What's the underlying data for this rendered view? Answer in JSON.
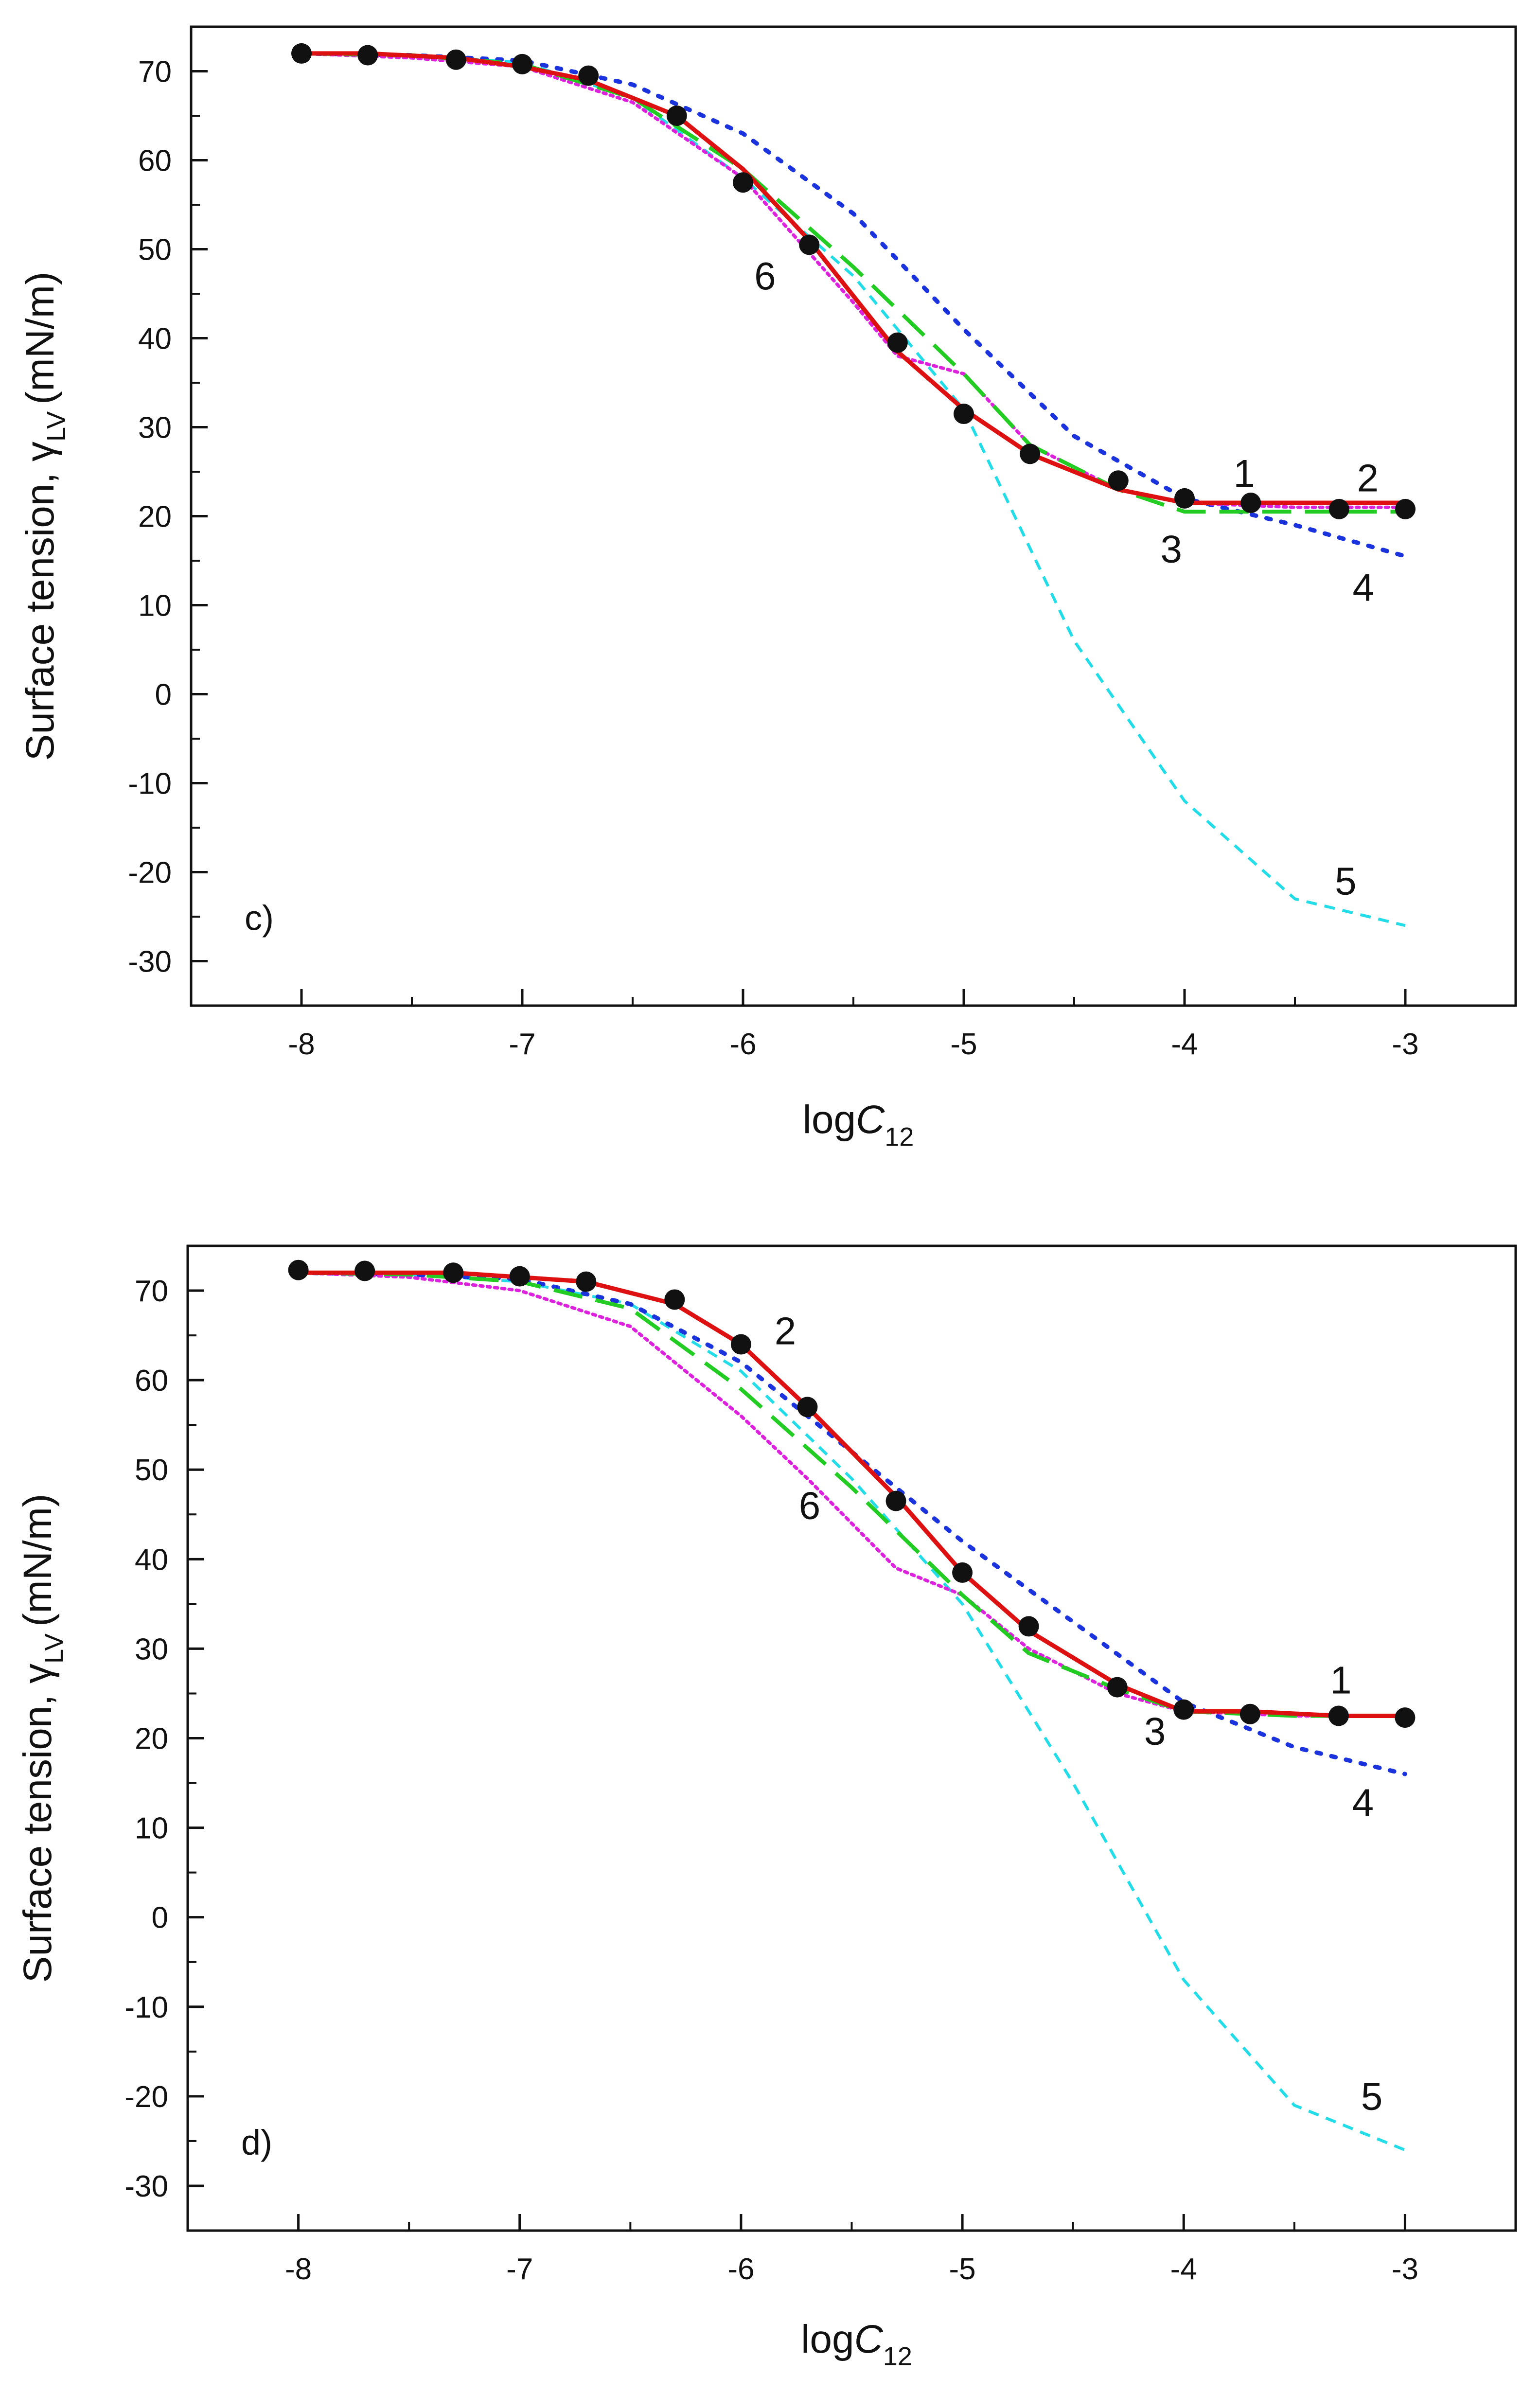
{
  "chart_data": [
    {
      "type": "line",
      "panel_label": "c)",
      "xlabel_main": "log",
      "xlabel_var": "C",
      "xlabel_sub": "12",
      "ylabel_main": "Surface tension, γ",
      "ylabel_sub": "LV",
      "ylabel_unit": "(mN/m)",
      "xlim": [
        -8.5,
        -2.5
      ],
      "ylim": [
        -35,
        75
      ],
      "x_ticks": [
        -8,
        -7,
        -6,
        -5,
        -4,
        -3
      ],
      "y_ticks": [
        70,
        60,
        50,
        40,
        30,
        20,
        10,
        0,
        -10,
        -20,
        -30
      ],
      "series": [
        {
          "name": "5",
          "color": "#22dde8",
          "style": "short-dash",
          "x": [
            -8,
            -7.5,
            -7,
            -6.5,
            -6,
            -5.5,
            -5,
            -4.5,
            -4,
            -3.5,
            -3
          ],
          "y": [
            72,
            71.8,
            71,
            67,
            58,
            47,
            32,
            6,
            -12,
            -23,
            -26
          ]
        },
        {
          "name": "4",
          "color": "#1a33dd",
          "style": "dot",
          "x": [
            -8,
            -7.5,
            -7,
            -6.5,
            -6,
            -5.5,
            -5,
            -4.5,
            -4,
            -3.5,
            -3
          ],
          "y": [
            72,
            71.8,
            71.2,
            68.5,
            63,
            54,
            41,
            29,
            22,
            19,
            15.5
          ]
        },
        {
          "name": "6",
          "color": "#dd22dd",
          "style": "fine-dot",
          "x": [
            -8,
            -7.5,
            -7,
            -6.5,
            -6,
            -5.5,
            -5.3,
            -5,
            -4.7,
            -4.3,
            -4,
            -3.5,
            -3
          ],
          "y": [
            72,
            71.5,
            70.5,
            66.5,
            58,
            44,
            38,
            36,
            28,
            23,
            21.5,
            21,
            21
          ]
        },
        {
          "name": "3",
          "color": "#22cc22",
          "style": "long-dash",
          "x": [
            -8,
            -7.5,
            -7,
            -6.5,
            -6,
            -5.5,
            -5,
            -4.7,
            -4.3,
            -4,
            -3.5,
            -3
          ],
          "y": [
            72,
            71.8,
            70.8,
            67,
            59,
            48,
            36,
            28,
            23,
            20.5,
            20.5,
            20.5
          ]
        },
        {
          "name": "2",
          "color": "#dd1111",
          "style": "solid",
          "x": [
            -8,
            -7.7,
            -7.3,
            -7,
            -6.7,
            -6.3,
            -6,
            -5.7,
            -5.3,
            -5,
            -4.7,
            -4.3,
            -4,
            -3.7,
            -3.3,
            -3
          ],
          "y": [
            72,
            72,
            71.5,
            70.5,
            69,
            65,
            59,
            51,
            38.5,
            32,
            27,
            23,
            21.5,
            21.5,
            21.5,
            21.5
          ]
        },
        {
          "name": "1",
          "color": "#111111",
          "style": "markers",
          "x": [
            -8,
            -7.7,
            -7.3,
            -7,
            -6.7,
            -6.3,
            -6,
            -5.7,
            -5.3,
            -5,
            -4.7,
            -4.3,
            -4,
            -3.7,
            -3.3,
            -3
          ],
          "y": [
            72,
            71.8,
            71.3,
            70.8,
            69.5,
            65,
            57.5,
            50.5,
            39.5,
            31.5,
            27,
            24,
            22,
            21.5,
            20.8,
            20.8
          ]
        }
      ],
      "annotations": [
        {
          "text": "1",
          "x": -3.73,
          "y": 23.3
        },
        {
          "text": "2",
          "x": -3.17,
          "y": 22.8
        },
        {
          "text": "3",
          "x": -4.06,
          "y": 14.8
        },
        {
          "text": "4",
          "x": -3.19,
          "y": 10.5
        },
        {
          "text": "5",
          "x": -3.27,
          "y": -22.5
        },
        {
          "text": "6",
          "x": -5.9,
          "y": 45.5
        }
      ]
    },
    {
      "type": "line",
      "panel_label": "d)",
      "xlabel_main": "log",
      "xlabel_var": "C",
      "xlabel_sub": "12",
      "ylabel_main": "Surface tension, γ",
      "ylabel_sub": "LV",
      "ylabel_unit": "(mN/m)",
      "xlim": [
        -8.5,
        -2.5
      ],
      "ylim": [
        -35,
        75
      ],
      "x_ticks": [
        -8,
        -7,
        -6,
        -5,
        -4,
        -3
      ],
      "y_ticks": [
        70,
        60,
        50,
        40,
        30,
        20,
        10,
        0,
        -10,
        -20,
        -30
      ],
      "series": [
        {
          "name": "5",
          "color": "#22dde8",
          "style": "short-dash",
          "x": [
            -8,
            -7.5,
            -7,
            -6.5,
            -6,
            -5.5,
            -5,
            -4.5,
            -4,
            -3.5,
            -3
          ],
          "y": [
            72,
            71.8,
            71,
            68.5,
            61,
            49,
            35,
            15,
            -7,
            -21,
            -26
          ]
        },
        {
          "name": "4",
          "color": "#1a33dd",
          "style": "dot",
          "x": [
            -8,
            -7.5,
            -7,
            -6.5,
            -6,
            -5.5,
            -5,
            -4.5,
            -4,
            -3.5,
            -3
          ],
          "y": [
            72,
            71.8,
            71.3,
            68.5,
            62,
            52,
            42,
            33,
            24,
            19,
            16
          ]
        },
        {
          "name": "6",
          "color": "#dd22dd",
          "style": "fine-dot",
          "x": [
            -8,
            -7.5,
            -7,
            -6.5,
            -6,
            -5.7,
            -5.3,
            -5,
            -4.7,
            -4.3,
            -4,
            -3.5,
            -3
          ],
          "y": [
            72,
            71.5,
            70,
            66,
            56,
            49,
            39,
            36,
            30,
            25,
            23,
            22.5,
            22.5
          ]
        },
        {
          "name": "3",
          "color": "#22cc22",
          "style": "long-dash",
          "x": [
            -8,
            -7.5,
            -7,
            -6.5,
            -6,
            -5.5,
            -5,
            -4.7,
            -4.3,
            -4,
            -3.5,
            -3
          ],
          "y": [
            72,
            71.8,
            71,
            68,
            59,
            48,
            36,
            29.5,
            25.5,
            23,
            22.5,
            22.5
          ]
        },
        {
          "name": "2",
          "color": "#dd1111",
          "style": "solid",
          "x": [
            -8,
            -7.7,
            -7.3,
            -7,
            -6.7,
            -6.3,
            -6,
            -5.7,
            -5.3,
            -5,
            -4.7,
            -4.3,
            -4,
            -3.7,
            -3.3,
            -3
          ],
          "y": [
            72,
            72,
            72,
            71.5,
            71,
            68.5,
            64,
            57,
            47,
            38.5,
            32,
            26,
            23,
            23,
            22.5,
            22.5
          ]
        },
        {
          "name": "1",
          "color": "#111111",
          "style": "markers",
          "x": [
            -8,
            -7.7,
            -7.3,
            -7,
            -6.7,
            -6.3,
            -6,
            -5.7,
            -5.3,
            -5,
            -4.7,
            -4.3,
            -4,
            -3.7,
            -3.3,
            -3
          ],
          "y": [
            72.3,
            72.2,
            72,
            71.6,
            71,
            69,
            64,
            57,
            46.5,
            38.5,
            32.5,
            25.7,
            23.2,
            22.7,
            22.5,
            22.3
          ]
        }
      ],
      "annotations": [
        {
          "text": "1",
          "x": -3.29,
          "y": 25
        },
        {
          "text": "2",
          "x": -5.8,
          "y": 64
        },
        {
          "text": "3",
          "x": -4.13,
          "y": 19.3
        },
        {
          "text": "4",
          "x": -3.19,
          "y": 11.3
        },
        {
          "text": "5",
          "x": -3.15,
          "y": -21.5
        },
        {
          "text": "6",
          "x": -5.69,
          "y": 44.5
        }
      ]
    }
  ]
}
